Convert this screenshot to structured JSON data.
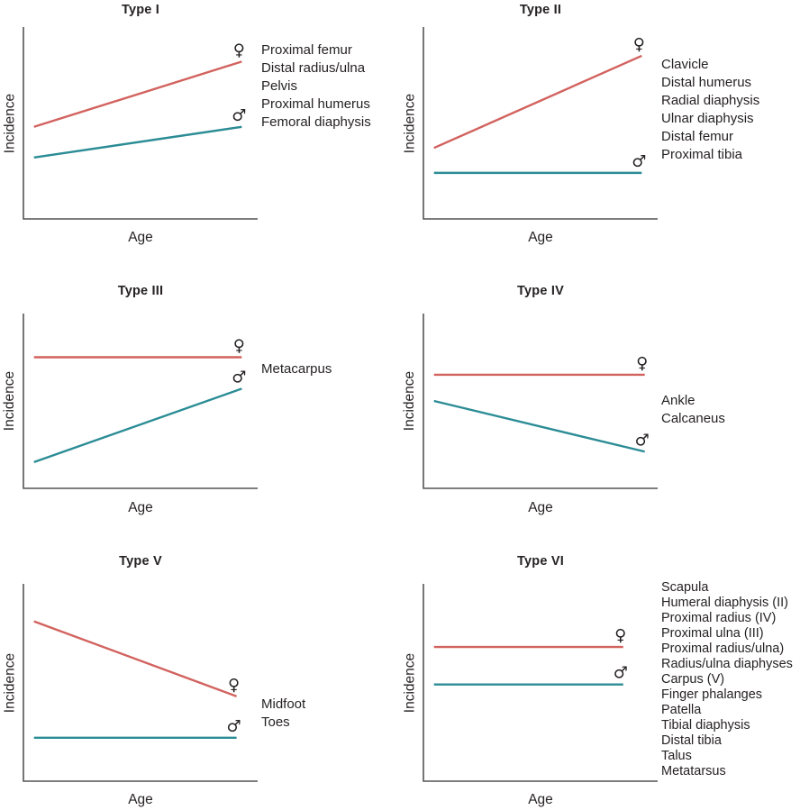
{
  "colors": {
    "female_line": "#d2625e",
    "male_line": "#2b8c95",
    "axis": "#545456",
    "text": "#262223"
  },
  "chart_data": [
    {
      "type": "line",
      "title": "Type I",
      "xlabel": "Age",
      "ylabel": "Incidence",
      "series": [
        {
          "name": "Female",
          "symbol": "♀",
          "trend": "increasing with age",
          "values_relative": [
            0.48,
            0.82
          ]
        },
        {
          "name": "Male",
          "symbol": "♂",
          "trend": "increasing with age",
          "values_relative": [
            0.32,
            0.48
          ]
        }
      ],
      "sites": [
        "Proximal femur",
        "Distal radius/ulna",
        "Pelvis",
        "Proximal humerus",
        "Femoral diaphysis"
      ]
    },
    {
      "type": "line",
      "title": "Type II",
      "xlabel": "Age",
      "ylabel": "Incidence",
      "series": [
        {
          "name": "Female",
          "symbol": "♀",
          "trend": "steeply increasing with age",
          "values_relative": [
            0.37,
            0.85
          ]
        },
        {
          "name": "Male",
          "symbol": "♂",
          "trend": "flat",
          "values_relative": [
            0.24,
            0.24
          ]
        }
      ],
      "sites": [
        "Clavicle",
        "Distal humerus",
        "Radial diaphysis",
        "Ulnar diaphysis",
        "Distal femur",
        "Proximal tibia"
      ]
    },
    {
      "type": "line",
      "title": "Type III",
      "xlabel": "Age",
      "ylabel": "Incidence",
      "series": [
        {
          "name": "Female",
          "symbol": "♀",
          "trend": "flat",
          "values_relative": [
            0.75,
            0.75
          ]
        },
        {
          "name": "Male",
          "symbol": "♂",
          "trend": "increasing with age",
          "values_relative": [
            0.15,
            0.57
          ]
        }
      ],
      "sites": [
        "Metacarpus"
      ]
    },
    {
      "type": "line",
      "title": "Type IV",
      "xlabel": "Age",
      "ylabel": "Incidence",
      "series": [
        {
          "name": "Female",
          "symbol": "♀",
          "trend": "flat",
          "values_relative": [
            0.65,
            0.65
          ]
        },
        {
          "name": "Male",
          "symbol": "♂",
          "trend": "decreasing with age",
          "values_relative": [
            0.5,
            0.21
          ]
        }
      ],
      "sites": [
        "Ankle",
        "Calcaneus"
      ]
    },
    {
      "type": "line",
      "title": "Type V",
      "xlabel": "Age",
      "ylabel": "Incidence",
      "series": [
        {
          "name": "Female",
          "symbol": "♀",
          "trend": "decreasing with age",
          "values_relative": [
            0.81,
            0.43
          ]
        },
        {
          "name": "Male",
          "symbol": "♂",
          "trend": "flat",
          "values_relative": [
            0.22,
            0.22
          ]
        }
      ],
      "sites": [
        "Midfoot",
        "Toes"
      ]
    },
    {
      "type": "line",
      "title": "Type VI",
      "xlabel": "Age",
      "ylabel": "Incidence",
      "series": [
        {
          "name": "Female",
          "symbol": "♀",
          "trend": "flat",
          "values_relative": [
            0.68,
            0.68
          ]
        },
        {
          "name": "Male",
          "symbol": "♂",
          "trend": "flat",
          "values_relative": [
            0.49,
            0.49
          ]
        }
      ],
      "sites": [
        "Scapula",
        "Humeral diaphysis (II)",
        "Proximal radius (IV)",
        "Proximal ulna (III)",
        "Proximal radius/ulna)",
        "Radius/ulna diaphyses",
        "Carpus (V)",
        "Finger phalanges",
        "Patella",
        "Tibial diaphysis",
        "Distal tibia",
        "Talus",
        "Metatarsus"
      ]
    }
  ]
}
